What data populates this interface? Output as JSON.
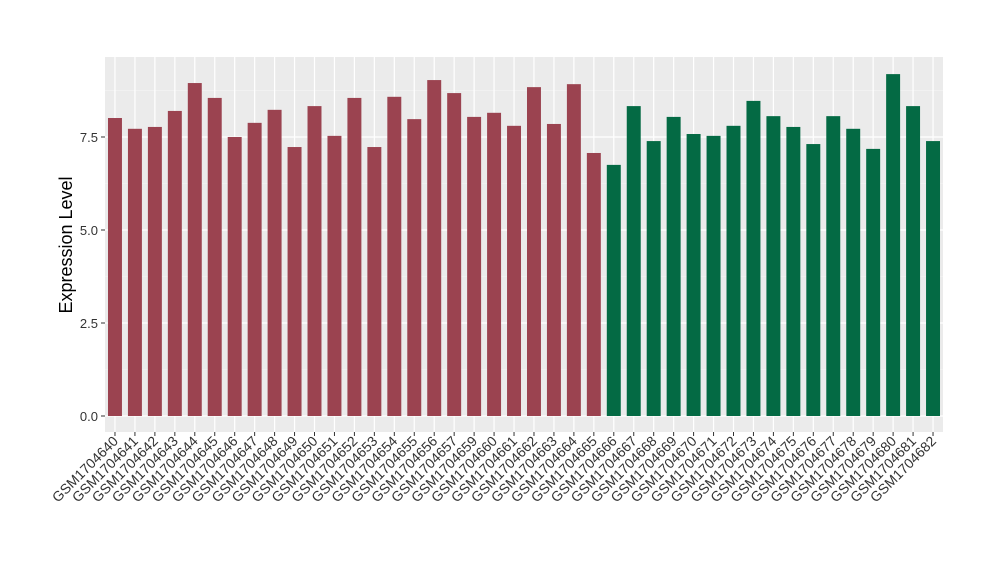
{
  "chart_data": {
    "type": "bar",
    "y_label": "Expression Level",
    "categories": [
      "GSM1704640",
      "GSM1704641",
      "GSM1704642",
      "GSM1704643",
      "GSM1704644",
      "GSM1704645",
      "GSM1704646",
      "GSM1704647",
      "GSM1704648",
      "GSM1704649",
      "GSM1704650",
      "GSM1704651",
      "GSM1704652",
      "GSM1704653",
      "GSM1704654",
      "GSM1704655",
      "GSM1704656",
      "GSM1704657",
      "GSM1704659",
      "GSM1704660",
      "GSM1704661",
      "GSM1704662",
      "GSM1704663",
      "GSM1704664",
      "GSM1704665",
      "GSM1704666",
      "GSM1704667",
      "GSM1704668",
      "GSM1704669",
      "GSM1704670",
      "GSM1704671",
      "GSM1704672",
      "GSM1704673",
      "GSM1704674",
      "GSM1704675",
      "GSM1704676",
      "GSM1704677",
      "GSM1704678",
      "GSM1704679",
      "GSM1704680",
      "GSM1704681",
      "GSM1704682"
    ],
    "values": [
      8.01,
      7.72,
      7.77,
      8.2,
      8.95,
      8.55,
      7.5,
      7.88,
      8.23,
      7.23,
      8.33,
      7.53,
      8.55,
      7.23,
      8.58,
      7.98,
      9.03,
      8.68,
      8.04,
      8.15,
      7.8,
      8.84,
      7.85,
      8.92,
      7.07,
      6.75,
      8.33,
      7.39,
      8.04,
      7.58,
      7.53,
      7.8,
      8.47,
      8.06,
      7.77,
      7.31,
      8.06,
      7.72,
      7.18,
      9.19,
      8.33,
      7.39
    ],
    "colors": [
      "#9b4350",
      "#9b4350",
      "#9b4350",
      "#9b4350",
      "#9b4350",
      "#9b4350",
      "#9b4350",
      "#9b4350",
      "#9b4350",
      "#9b4350",
      "#9b4350",
      "#9b4350",
      "#9b4350",
      "#9b4350",
      "#9b4350",
      "#9b4350",
      "#9b4350",
      "#9b4350",
      "#9b4350",
      "#9b4350",
      "#9b4350",
      "#9b4350",
      "#9b4350",
      "#9b4350",
      "#9b4350",
      "#046a44",
      "#046a44",
      "#046a44",
      "#046a44",
      "#046a44",
      "#046a44",
      "#046a44",
      "#046a44",
      "#046a44",
      "#046a44",
      "#046a44",
      "#046a44",
      "#046a44",
      "#046a44",
      "#046a44",
      "#046a44",
      "#046a44"
    ],
    "ylim": [
      -0.43,
      9.65
    ],
    "yticks": [
      {
        "value": 0,
        "label": "0.0"
      },
      2.5,
      {
        "value": 5,
        "label": "5.0"
      },
      7.5
    ],
    "grid": true
  }
}
